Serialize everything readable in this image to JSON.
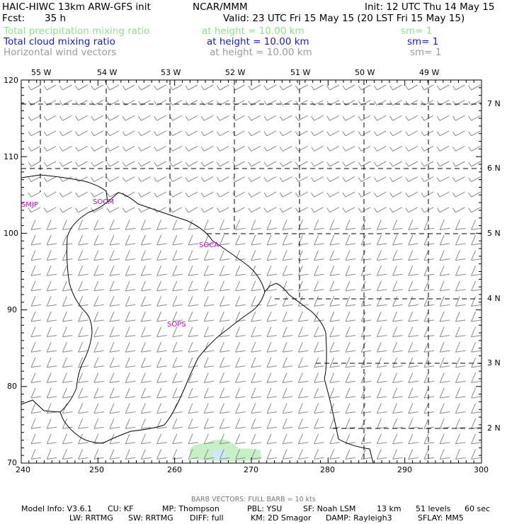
{
  "header": {
    "title": "HAIC-HIWC 13km ARW-GFS init",
    "org": "NCAR/MMM",
    "init": "Init: 12 UTC Thu 14 May 15",
    "fcst_label": "Fcst:",
    "fcst_value": "35 h",
    "valid": "Valid: 23 UTC Fri 15 May 15 (20 LST Fri 15 May 15)"
  },
  "fields": [
    {
      "name": "Total precipitation mixing ratio",
      "height": "at height = 10.00 km",
      "sm": "sm= 1",
      "color": "#8fe08f"
    },
    {
      "name": "Total cloud mixing ratio",
      "height": "at height = 10.00 km",
      "sm": "sm= 1",
      "color": "#1a1acc"
    },
    {
      "name": "Horizontal wind vectors",
      "height": "at height = 10.00 km",
      "sm": "sm= 1",
      "color": "#9a9a9a"
    }
  ],
  "map": {
    "x_ticks": [
      "240",
      "250",
      "260",
      "270",
      "280",
      "290",
      "300"
    ],
    "y_ticks": [
      "120",
      "110",
      "100",
      "90",
      "80",
      "70"
    ],
    "lon_labels": [
      "55 W",
      "54 W",
      "53 W",
      "52 W",
      "51 W",
      "50 W",
      "49 W"
    ],
    "lat_labels": [
      "7 N",
      "6 N",
      "5 N",
      "4 N",
      "3 N",
      "2 N"
    ],
    "stations": [
      "SMJP",
      "SOCM",
      "SOCA",
      "SOPS"
    ],
    "coast_color": "#000000",
    "grid_color": "#000000",
    "barb_color": "#888888",
    "station_color": "#cc00cc",
    "precip_color": "#c8f0c8",
    "cloud_color": "#cfe6ff"
  },
  "footer": {
    "barb": "BARB VECTORS:  FULL BARB = 10 kts",
    "line1": [
      "Model Info: V3.6.1",
      "CU: KF",
      "MP: Thompson",
      "PBL: YSU",
      "SF: Noah LSM",
      "13 km",
      "51 levels",
      "60 sec"
    ],
    "line2": [
      "LW: RRTMG",
      "SW: RRTMG",
      "DIFF: full",
      "KM: 2D Smagor",
      "DAMP: Rayleigh3",
      "SFLAY: MM5"
    ]
  }
}
